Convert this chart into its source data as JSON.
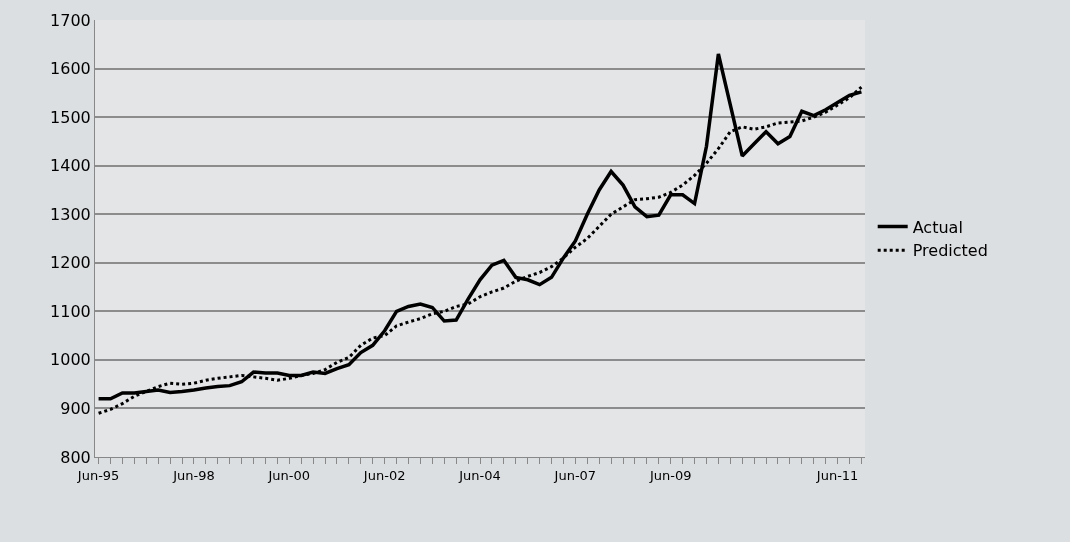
{
  "chart_data": {
    "type": "line",
    "categories": [
      "Jun-95",
      null,
      null,
      null,
      null,
      null,
      null,
      null,
      "Jun-98",
      null,
      null,
      null,
      null,
      null,
      null,
      null,
      "Jun-00",
      null,
      null,
      null,
      null,
      null,
      null,
      null,
      "Jun-02",
      null,
      null,
      null,
      null,
      null,
      null,
      null,
      "Jun-04",
      null,
      null,
      null,
      null,
      null,
      null,
      null,
      "Jun-07",
      null,
      null,
      null,
      null,
      null,
      null,
      null,
      "Jun-09",
      null,
      null,
      null,
      null,
      null,
      null,
      null,
      null,
      null,
      null,
      null,
      null,
      null,
      "Jun-11",
      null,
      null
    ],
    "series": [
      {
        "name": "Actual",
        "color": "#000000",
        "line_style": "solid",
        "values": [
          920,
          920,
          932,
          932,
          935,
          938,
          933,
          935,
          938,
          942,
          945,
          947,
          955,
          975,
          973,
          973,
          968,
          968,
          975,
          972,
          982,
          990,
          1015,
          1030,
          1060,
          1100,
          1110,
          1115,
          1108,
          1080,
          1082,
          1125,
          1165,
          1195,
          1205,
          1170,
          1165,
          1155,
          1170,
          1210,
          1245,
          1300,
          1350,
          1388,
          1360,
          1315,
          1295,
          1298,
          1340,
          1340,
          1322,
          1440,
          1630,
          1525,
          1420,
          1445,
          1470,
          1445,
          1460,
          1512,
          1503,
          1515,
          1530,
          1545,
          1552
        ]
      },
      {
        "name": "Predicted",
        "color": "#000000",
        "line_style": "dotted",
        "values": [
          890,
          898,
          910,
          925,
          935,
          945,
          952,
          950,
          952,
          958,
          962,
          965,
          968,
          965,
          962,
          958,
          962,
          968,
          972,
          980,
          995,
          1005,
          1030,
          1045,
          1050,
          1070,
          1078,
          1085,
          1095,
          1100,
          1110,
          1115,
          1130,
          1140,
          1148,
          1162,
          1172,
          1180,
          1192,
          1210,
          1232,
          1250,
          1275,
          1300,
          1315,
          1330,
          1332,
          1335,
          1345,
          1360,
          1380,
          1405,
          1435,
          1470,
          1480,
          1475,
          1480,
          1488,
          1490,
          1492,
          1500,
          1510,
          1525,
          1540,
          1562
        ]
      }
    ],
    "ylim": [
      800,
      1700
    ],
    "yticks": [
      800,
      900,
      1000,
      1100,
      1200,
      1300,
      1400,
      1500,
      1600,
      1700
    ],
    "grid": "y",
    "legend": "right",
    "marker": "none"
  }
}
